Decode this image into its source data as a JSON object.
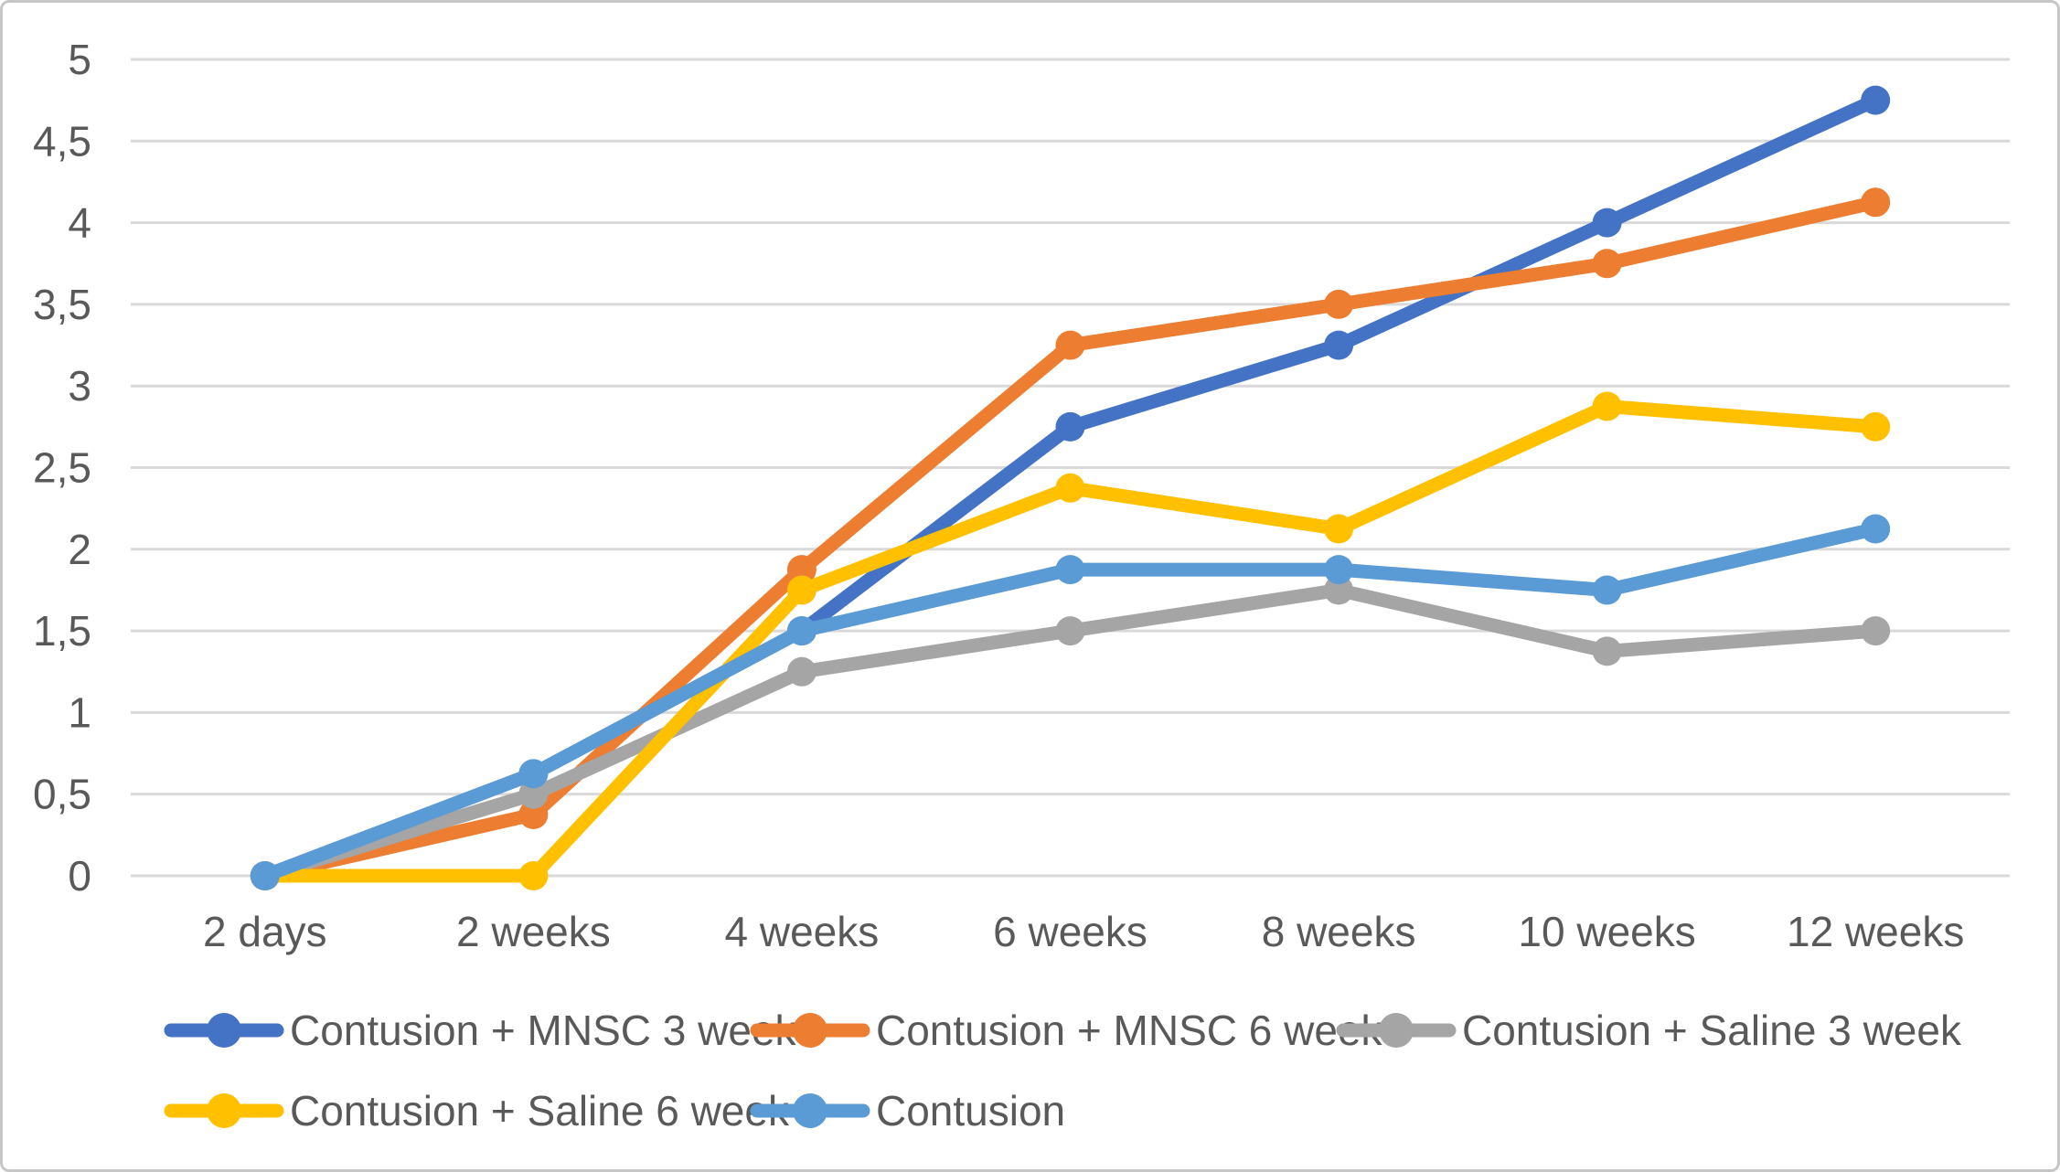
{
  "chart_data": {
    "type": "line",
    "title": "",
    "xlabel": "",
    "ylabel": "",
    "categories": [
      "2 days",
      "2 weeks",
      "4 weeks",
      "6 weeks",
      "8 weeks",
      "10 weeks",
      "12 weeks"
    ],
    "series": [
      {
        "name": "Contusion + MNSC 3 week",
        "color": "#4472C4",
        "values": [
          0,
          0.625,
          1.5,
          2.75,
          3.25,
          4.0,
          4.75
        ]
      },
      {
        "name": "Contusion + MNSC 6 week",
        "color": "#ED7D31",
        "values": [
          0,
          0.375,
          1.875,
          3.25,
          3.5,
          3.75,
          4.125
        ]
      },
      {
        "name": "Contusion + Saline 3 week",
        "color": "#A5A5A5",
        "values": [
          0,
          0.5,
          1.25,
          1.5,
          1.75,
          1.375,
          1.5
        ]
      },
      {
        "name": "Contusion + Saline 6 week",
        "color": "#FFC000",
        "values": [
          0,
          0.0,
          1.75,
          2.375,
          2.125,
          2.875,
          2.75
        ]
      },
      {
        "name": "Contusion",
        "color": "#5B9BD5",
        "values": [
          0,
          0.625,
          1.5,
          1.875,
          1.875,
          1.75,
          2.125
        ]
      }
    ],
    "y_axis": {
      "min": 0,
      "max": 5,
      "step": 0.5,
      "tick_values": [
        0,
        0.5,
        1,
        1.5,
        2,
        2.5,
        3,
        3.5,
        4,
        4.5,
        5
      ],
      "tick_labels": [
        "0",
        "0,5",
        "1",
        "1,5",
        "2",
        "2,5",
        "3",
        "3,5",
        "4",
        "4,5",
        "5"
      ],
      "decimal_separator": ","
    },
    "grid": "horizontal",
    "gridline_color": "#D9D9D9",
    "text_color": "#595959",
    "legend_position": "bottom",
    "legend": [
      "Contusion + MNSC 3 week",
      "Contusion + MNSC 6 week",
      "Contusion + Saline 3 week",
      "Contusion + Saline 6 week",
      "Contusion"
    ]
  }
}
